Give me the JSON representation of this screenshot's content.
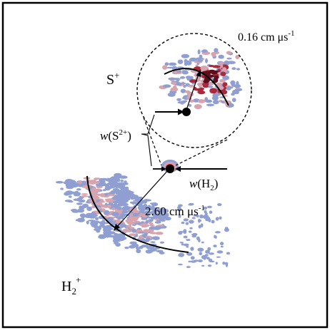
{
  "labels": {
    "s_plus_base": "S",
    "s_plus_sup": "+",
    "h2_plus_base": "H",
    "h2_plus_sub": "2",
    "h2_plus_sup": "+",
    "w_s2plus_prefix": "w",
    "w_s2plus_open": "(S",
    "w_s2plus_sup": "2+",
    "w_s2plus_close": ")",
    "w_h2_prefix": "w",
    "w_h2_open": "(H",
    "w_h2_sub": "2",
    "w_h2_close": ")",
    "speed_zoom": "0.16 cm μs",
    "speed_zoom_sup": "-1",
    "speed_main": "2.60 cm μs",
    "speed_main_sup": "-1"
  },
  "colors": {
    "low": "#8f9fd2",
    "mid": "#d7a3ad",
    "high": "#a92a3c",
    "peak": "#5e0d1a",
    "ink": "#000000"
  }
}
